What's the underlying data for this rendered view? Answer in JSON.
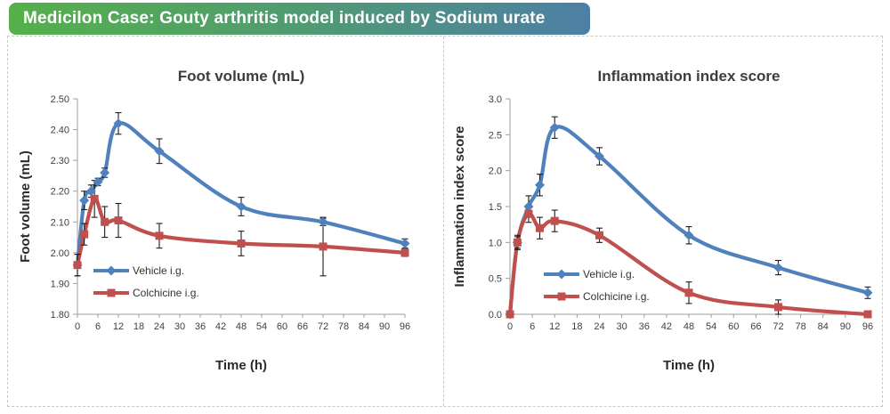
{
  "banner": {
    "text": "Medicilon Case: Gouty arthritis model induced by Sodium urate",
    "gradient_from": "#55b04a",
    "gradient_mid": "#509b72",
    "gradient_to": "#4d7fa5",
    "text_color": "#ffffff"
  },
  "colors": {
    "vehicle_series": "#4F81BD",
    "colchicine_series": "#C0504D",
    "error_bar": "#1c1c1c",
    "axis": "#9d9d9d",
    "panel_border": "#c9c9c9"
  },
  "chart_data": [
    {
      "type": "line",
      "title": "Foot volume (mL)",
      "xlabel": "Time (h)",
      "ylabel": "Foot volume (mL)",
      "xlim": [
        0,
        96
      ],
      "ylim": [
        1.8,
        2.5
      ],
      "xticks": [
        0,
        6,
        12,
        18,
        24,
        30,
        36,
        42,
        48,
        54,
        60,
        66,
        72,
        78,
        84,
        90,
        96
      ],
      "yticks": [
        "1.80",
        "1.90",
        "2.00",
        "2.10",
        "2.20",
        "2.30",
        "2.40",
        "2.50"
      ],
      "grid": false,
      "legend_position": "inside-lower-left",
      "series": [
        {
          "name": "Vehicle i.g.",
          "color": "#4F81BD",
          "marker": "diamond",
          "x": [
            0,
            2,
            4,
            6,
            8,
            12,
            24,
            48,
            72,
            96
          ],
          "y": [
            1.96,
            2.17,
            2.2,
            2.23,
            2.26,
            2.42,
            2.33,
            2.15,
            2.1,
            2.03
          ],
          "err": [
            0.035,
            0.03,
            0.02,
            0.012,
            0.015,
            0.035,
            0.04,
            0.03,
            0.012,
            0.015
          ]
        },
        {
          "name": "Colchicine i.g.",
          "color": "#C0504D",
          "marker": "square",
          "x": [
            0,
            2,
            5,
            8,
            12,
            24,
            48,
            72,
            96
          ],
          "y": [
            1.96,
            2.06,
            2.175,
            2.1,
            2.105,
            2.055,
            2.03,
            2.02,
            2.0
          ],
          "err": [
            0.035,
            0.035,
            0.06,
            0.05,
            0.055,
            0.04,
            0.04,
            0.095,
            0.012
          ]
        }
      ]
    },
    {
      "type": "line",
      "title": "Inflammation index score",
      "xlabel": "Time (h)",
      "ylabel": "Inflammation index score",
      "xlim": [
        0,
        96
      ],
      "ylim": [
        0.0,
        3.0
      ],
      "xticks": [
        0,
        6,
        12,
        18,
        24,
        30,
        36,
        42,
        48,
        54,
        60,
        66,
        72,
        78,
        84,
        90,
        96
      ],
      "yticks": [
        "0.0",
        "0.5",
        "1.0",
        "1.5",
        "2.0",
        "2.5",
        "3.0"
      ],
      "grid": false,
      "legend_position": "inside-lower-left",
      "series": [
        {
          "name": "Vehicle i.g.",
          "color": "#4F81BD",
          "marker": "diamond",
          "x": [
            0,
            2,
            5,
            8,
            12,
            24,
            48,
            72,
            96
          ],
          "y": [
            0.0,
            1.0,
            1.5,
            1.8,
            2.6,
            2.2,
            1.1,
            0.65,
            0.3
          ],
          "err": [
            0,
            0.1,
            0.15,
            0.15,
            0.15,
            0.12,
            0.12,
            0.1,
            0.08
          ]
        },
        {
          "name": "Colchicine i.g.",
          "color": "#C0504D",
          "marker": "square",
          "x": [
            0,
            2,
            5,
            8,
            12,
            24,
            48,
            72,
            96
          ],
          "y": [
            0.0,
            1.0,
            1.4,
            1.2,
            1.3,
            1.1,
            0.3,
            0.1,
            0.0
          ],
          "err": [
            0,
            0.08,
            0.12,
            0.15,
            0.15,
            0.1,
            0.15,
            0.1,
            0.02
          ]
        }
      ]
    }
  ]
}
